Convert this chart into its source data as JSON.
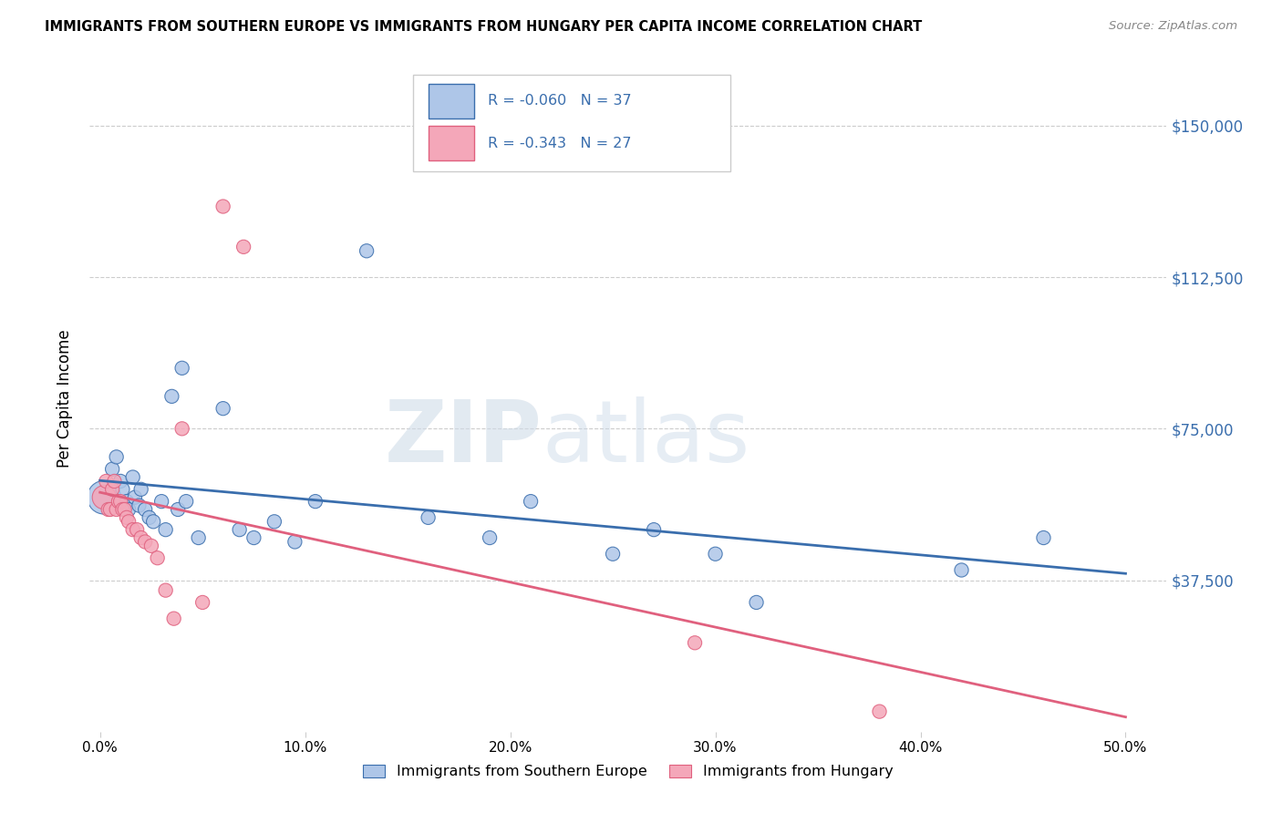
{
  "title": "IMMIGRANTS FROM SOUTHERN EUROPE VS IMMIGRANTS FROM HUNGARY PER CAPITA INCOME CORRELATION CHART",
  "source": "Source: ZipAtlas.com",
  "ylabel": "Per Capita Income",
  "xlabel_ticks": [
    "0.0%",
    "10.0%",
    "20.0%",
    "30.0%",
    "40.0%",
    "50.0%"
  ],
  "xlabel_tick_vals": [
    0.0,
    0.1,
    0.2,
    0.3,
    0.4,
    0.5
  ],
  "ytick_labels": [
    "$37,500",
    "$75,000",
    "$112,500",
    "$150,000"
  ],
  "ytick_vals": [
    37500,
    75000,
    112500,
    150000
  ],
  "ylim": [
    0,
    165000
  ],
  "xlim": [
    -0.005,
    0.52
  ],
  "blue_R": -0.06,
  "blue_N": 37,
  "pink_R": -0.343,
  "pink_N": 27,
  "blue_color": "#aec6e8",
  "pink_color": "#f4a7b9",
  "blue_line_color": "#3a6ead",
  "pink_line_color": "#e0607e",
  "watermark_zip": "ZIP",
  "watermark_atlas": "atlas",
  "legend_label_blue": "Immigrants from Southern Europe",
  "legend_label_pink": "Immigrants from Hungary",
  "blue_scatter_x": [
    0.002,
    0.006,
    0.008,
    0.01,
    0.011,
    0.013,
    0.014,
    0.016,
    0.017,
    0.019,
    0.02,
    0.022,
    0.024,
    0.026,
    0.03,
    0.032,
    0.035,
    0.038,
    0.04,
    0.042,
    0.048,
    0.06,
    0.068,
    0.075,
    0.085,
    0.095,
    0.105,
    0.13,
    0.16,
    0.19,
    0.21,
    0.25,
    0.27,
    0.3,
    0.32,
    0.42,
    0.46
  ],
  "blue_scatter_y": [
    58000,
    65000,
    68000,
    62000,
    60000,
    57000,
    55000,
    63000,
    58000,
    56000,
    60000,
    55000,
    53000,
    52000,
    57000,
    50000,
    83000,
    55000,
    90000,
    57000,
    48000,
    80000,
    50000,
    48000,
    52000,
    47000,
    57000,
    119000,
    53000,
    48000,
    57000,
    44000,
    50000,
    44000,
    32000,
    40000,
    48000
  ],
  "blue_scatter_sizes": [
    700,
    120,
    120,
    120,
    120,
    120,
    120,
    120,
    120,
    120,
    120,
    120,
    120,
    120,
    120,
    120,
    120,
    120,
    120,
    120,
    120,
    120,
    120,
    120,
    120,
    120,
    120,
    120,
    120,
    120,
    120,
    120,
    120,
    120,
    120,
    120,
    120
  ],
  "pink_scatter_x": [
    0.002,
    0.003,
    0.004,
    0.005,
    0.006,
    0.007,
    0.008,
    0.009,
    0.01,
    0.011,
    0.012,
    0.013,
    0.014,
    0.016,
    0.018,
    0.02,
    0.022,
    0.025,
    0.028,
    0.032,
    0.036,
    0.04,
    0.05,
    0.06,
    0.07,
    0.29,
    0.38
  ],
  "pink_scatter_y": [
    58000,
    62000,
    55000,
    55000,
    60000,
    62000,
    55000,
    57000,
    57000,
    55000,
    55000,
    53000,
    52000,
    50000,
    50000,
    48000,
    47000,
    46000,
    43000,
    35000,
    28000,
    75000,
    32000,
    130000,
    120000,
    22000,
    5000
  ]
}
